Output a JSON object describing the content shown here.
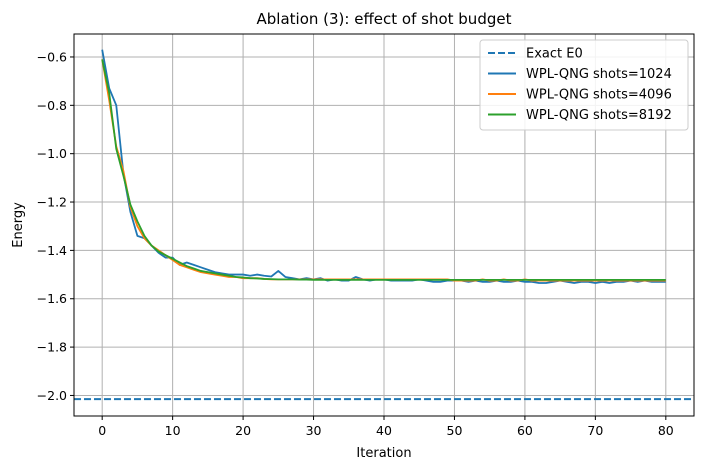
{
  "chart_data": {
    "type": "line",
    "title": "Ablation (3): effect of shot budget",
    "xlabel": "Iteration",
    "ylabel": "Energy",
    "xlim": [
      -4,
      84
    ],
    "ylim": [
      -2.085,
      -0.505
    ],
    "xticks": [
      0,
      10,
      20,
      30,
      40,
      50,
      60,
      70,
      80
    ],
    "xtick_labels": [
      "0",
      "10",
      "20",
      "30",
      "40",
      "50",
      "60",
      "70",
      "80"
    ],
    "yticks": [
      -2.0,
      -1.8,
      -1.6,
      -1.4,
      -1.2,
      -1.0,
      -0.8,
      -0.6
    ],
    "ytick_labels": [
      "−2.0",
      "−1.8",
      "−1.6",
      "−1.4",
      "−1.2",
      "−1.0",
      "−0.8",
      "−0.6"
    ],
    "grid": true,
    "legend_position": "top-right",
    "x": [
      0,
      1,
      2,
      3,
      4,
      5,
      6,
      7,
      8,
      9,
      10,
      11,
      12,
      13,
      14,
      15,
      16,
      17,
      18,
      19,
      20,
      21,
      22,
      23,
      24,
      25,
      26,
      27,
      28,
      29,
      30,
      31,
      32,
      33,
      34,
      35,
      36,
      37,
      38,
      39,
      40,
      41,
      42,
      43,
      44,
      45,
      46,
      47,
      48,
      49,
      50,
      51,
      52,
      53,
      54,
      55,
      56,
      57,
      58,
      59,
      60,
      61,
      62,
      63,
      64,
      65,
      66,
      67,
      68,
      69,
      70,
      71,
      72,
      73,
      74,
      75,
      76,
      77,
      78,
      79,
      80
    ],
    "reference_line": {
      "name": "Exact E0",
      "y": -2.015,
      "color": "#1f77b4",
      "style": "dashed"
    },
    "series": [
      {
        "name": "WPL-QNG shots=1024",
        "color": "#1f77b4",
        "values": [
          -0.57,
          -0.73,
          -0.8,
          -1.08,
          -1.24,
          -1.34,
          -1.35,
          -1.38,
          -1.41,
          -1.43,
          -1.43,
          -1.46,
          -1.45,
          -1.46,
          -1.47,
          -1.48,
          -1.49,
          -1.495,
          -1.5,
          -1.5,
          -1.5,
          -1.505,
          -1.5,
          -1.505,
          -1.508,
          -1.485,
          -1.51,
          -1.515,
          -1.52,
          -1.515,
          -1.52,
          -1.515,
          -1.525,
          -1.52,
          -1.525,
          -1.525,
          -1.51,
          -1.52,
          -1.525,
          -1.52,
          -1.52,
          -1.525,
          -1.525,
          -1.525,
          -1.525,
          -1.52,
          -1.525,
          -1.53,
          -1.53,
          -1.525,
          -1.525,
          -1.525,
          -1.53,
          -1.525,
          -1.53,
          -1.53,
          -1.525,
          -1.53,
          -1.53,
          -1.525,
          -1.53,
          -1.53,
          -1.535,
          -1.535,
          -1.53,
          -1.525,
          -1.53,
          -1.535,
          -1.53,
          -1.53,
          -1.535,
          -1.53,
          -1.535,
          -1.53,
          -1.53,
          -1.525,
          -1.53,
          -1.525,
          -1.53,
          -1.53,
          -1.53
        ]
      },
      {
        "name": "WPL-QNG shots=4096",
        "color": "#ff7f0e",
        "values": [
          -0.61,
          -0.78,
          -0.97,
          -1.07,
          -1.22,
          -1.3,
          -1.35,
          -1.38,
          -1.4,
          -1.42,
          -1.44,
          -1.46,
          -1.47,
          -1.48,
          -1.49,
          -1.495,
          -1.5,
          -1.505,
          -1.51,
          -1.51,
          -1.515,
          -1.515,
          -1.515,
          -1.518,
          -1.52,
          -1.52,
          -1.52,
          -1.52,
          -1.52,
          -1.52,
          -1.52,
          -1.52,
          -1.52,
          -1.52,
          -1.52,
          -1.52,
          -1.52,
          -1.52,
          -1.52,
          -1.52,
          -1.52,
          -1.52,
          -1.52,
          -1.52,
          -1.52,
          -1.52,
          -1.52,
          -1.52,
          -1.52,
          -1.52,
          -1.525,
          -1.525,
          -1.525,
          -1.525,
          -1.52,
          -1.525,
          -1.525,
          -1.52,
          -1.525,
          -1.525,
          -1.52,
          -1.525,
          -1.525,
          -1.525,
          -1.525,
          -1.525,
          -1.525,
          -1.525,
          -1.525,
          -1.525,
          -1.525,
          -1.525,
          -1.525,
          -1.525,
          -1.525,
          -1.525,
          -1.525,
          -1.525,
          -1.525,
          -1.525,
          -1.525
        ]
      },
      {
        "name": "WPL-QNG shots=8192",
        "color": "#2ca02c",
        "values": [
          -0.61,
          -0.75,
          -0.98,
          -1.09,
          -1.21,
          -1.28,
          -1.34,
          -1.38,
          -1.405,
          -1.42,
          -1.435,
          -1.45,
          -1.465,
          -1.475,
          -1.485,
          -1.49,
          -1.495,
          -1.5,
          -1.505,
          -1.51,
          -1.512,
          -1.515,
          -1.516,
          -1.518,
          -1.519,
          -1.52,
          -1.52,
          -1.52,
          -1.521,
          -1.521,
          -1.522,
          -1.522,
          -1.522,
          -1.522,
          -1.522,
          -1.522,
          -1.522,
          -1.522,
          -1.522,
          -1.522,
          -1.522,
          -1.522,
          -1.522,
          -1.522,
          -1.522,
          -1.522,
          -1.522,
          -1.522,
          -1.522,
          -1.522,
          -1.522,
          -1.522,
          -1.522,
          -1.522,
          -1.522,
          -1.522,
          -1.522,
          -1.522,
          -1.522,
          -1.522,
          -1.522,
          -1.522,
          -1.522,
          -1.522,
          -1.522,
          -1.522,
          -1.522,
          -1.522,
          -1.522,
          -1.522,
          -1.522,
          -1.522,
          -1.522,
          -1.522,
          -1.522,
          -1.522,
          -1.522,
          -1.522,
          -1.522,
          -1.522,
          -1.522
        ]
      }
    ]
  }
}
